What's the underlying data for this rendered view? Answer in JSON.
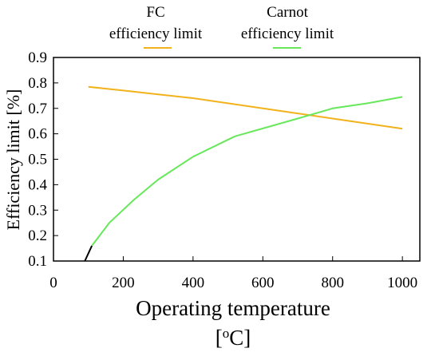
{
  "chart_data": {
    "type": "line",
    "xlabel": "Operating temperature",
    "xunit": "[oC]",
    "ylabel": "Efficiency limit [%]",
    "xlim": [
      0,
      1050
    ],
    "ylim": [
      0.1,
      0.9
    ],
    "xticks": [
      "0",
      "200",
      "400",
      "600",
      "800",
      "1000"
    ],
    "yticks": [
      "0.1",
      "0.2",
      "0.3",
      "0.4",
      "0.5",
      "0.6",
      "0.7",
      "0.8",
      "0.9"
    ],
    "legend_position": "top",
    "grid": false,
    "series": [
      {
        "name": "FC efficiency limit",
        "legend_lines": [
          "FC",
          "efficiency limit"
        ],
        "color": "#f2b21b",
        "x": [
          100,
          200,
          300,
          400,
          500,
          600,
          700,
          800,
          900,
          1000
        ],
        "y": [
          0.785,
          0.77,
          0.755,
          0.74,
          0.72,
          0.7,
          0.68,
          0.66,
          0.64,
          0.62
        ]
      },
      {
        "name": "Carnot efficiency limit",
        "legend_lines": [
          "Carnot",
          "efficiency limit"
        ],
        "color": "#66e85a",
        "x": [
          110,
          160,
          230,
          300,
          400,
          520,
          700,
          800,
          900,
          1000
        ],
        "y": [
          0.16,
          0.25,
          0.34,
          0.42,
          0.51,
          0.59,
          0.66,
          0.7,
          0.72,
          0.745
        ]
      },
      {
        "name": "",
        "color": "#000000",
        "x": [
          90,
          110
        ],
        "y": [
          0.1,
          0.16
        ]
      }
    ]
  }
}
